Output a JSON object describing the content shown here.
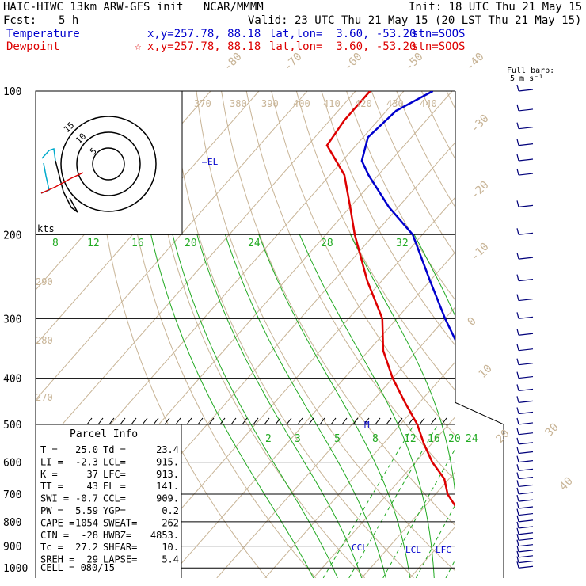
{
  "header": {
    "title": "HAIC-HIWC 13km ARW-GFS init   NCAR/MMMM",
    "init": "Init: 18 UTC Thu 21 May 15",
    "fcst_label": "Fcst:",
    "fcst_value": "5 h",
    "valid": "Valid: 23 UTC Thu 21 May 15 (20 LST Thu 21 May 15)",
    "temperature_line": {
      "label": "Temperature",
      "coords": "x,y=257.78, 88.18",
      "latlon": "lat,lon=  3.60, -53.20",
      "stn": "stn=SOOS",
      "color": "#0000cc"
    },
    "dewpoint_line": {
      "label": "Dewpoint",
      "marker": "☆",
      "coords": "x,y=257.78, 88.18",
      "latlon": "lat,lon=  3.60, -53.20",
      "stn": "stn=SOOS",
      "color": "#dd0000"
    }
  },
  "barb_label": {
    "line1": "Full barb:",
    "line2": "5 m s⁻¹"
  },
  "hodograph": {
    "unit": "kts",
    "ring_labels": [
      "5",
      "10",
      "15"
    ]
  },
  "parcel_info": {
    "title": "Parcel Info",
    "rows": [
      {
        "k1": "T  ",
        "v1": "25.0",
        "k2": "Td ",
        "v2": "23.4"
      },
      {
        "k1": "LI ",
        "v1": "-2.3",
        "k2": "LCL",
        "v2": "915."
      },
      {
        "k1": "K  ",
        "v1": "37",
        "k2": "LFC",
        "v2": "913."
      },
      {
        "k1": "TT ",
        "v1": "43",
        "k2": "EL ",
        "v2": "141."
      },
      {
        "k1": "SWI",
        "v1": "-0.7",
        "k2": "CCL",
        "v2": "909."
      },
      {
        "k1": "PW ",
        "v1": "5.59",
        "k2": "YGP",
        "v2": "0.2"
      },
      {
        "k1": "CAPE",
        "v1": "1054",
        "k2": "SWEAT",
        "v2": "262"
      },
      {
        "k1": "CIN",
        "v1": "-28",
        "k2": "HWBZ",
        "v2": "4853."
      },
      {
        "k1": "Tc ",
        "v1": "27.2",
        "k2": "SHEAR",
        "v2": "10."
      },
      {
        "k1": "SREH",
        "v1": "29",
        "k2": "LAPSE",
        "v2": "5.4"
      }
    ],
    "cell": "CELL = 080/15"
  },
  "chart_data": {
    "type": "line",
    "title": "",
    "y_axis": {
      "label": "",
      "scale": "log",
      "ticks": [
        100,
        200,
        300,
        400,
        500,
        600,
        700,
        800,
        900,
        1000
      ]
    },
    "isotherm_labels": [
      "-80",
      "-70",
      "-60",
      "-50",
      "-40",
      "-30",
      "-20",
      "-10",
      "0",
      "10",
      "20",
      "30",
      "40"
    ],
    "theta_labels": [
      "370",
      "380",
      "390",
      "400",
      "410",
      "420",
      "430",
      "440",
      "290",
      "280",
      "270"
    ],
    "mixing_ratio_labels_upper": [
      "8",
      "12",
      "16",
      "20",
      "24",
      "28",
      "32"
    ],
    "mixing_ratio_labels_lower": [
      "2",
      "3",
      "5",
      "8",
      "12",
      "16",
      "20",
      "24"
    ],
    "level_labels": [
      "EL",
      "M",
      "CCL",
      "LCL",
      "LFC"
    ],
    "series": [
      {
        "name": "Temperature",
        "color": "#0000cc",
        "points": [
          [
            1000,
            25.0
          ],
          [
            970,
            24.0
          ],
          [
            950,
            21.8
          ],
          [
            925,
            20.0
          ],
          [
            900,
            19.5
          ],
          [
            850,
            17.3
          ],
          [
            800,
            15.5
          ],
          [
            750,
            12.8
          ],
          [
            700,
            9.5
          ],
          [
            650,
            7.0
          ],
          [
            600,
            4.5
          ],
          [
            550,
            1.5
          ],
          [
            500,
            -2.5
          ],
          [
            450,
            -7.5
          ],
          [
            400,
            -13
          ],
          [
            350,
            -21
          ],
          [
            300,
            -30
          ],
          [
            250,
            -40
          ],
          [
            200,
            -52
          ],
          [
            175,
            -62
          ],
          [
            150,
            -72
          ],
          [
            140,
            -76
          ],
          [
            125,
            -79
          ],
          [
            110,
            -78
          ],
          [
            100,
            -74
          ]
        ]
      },
      {
        "name": "Dewpoint",
        "color": "#dd0000",
        "points": [
          [
            1000,
            23.4
          ],
          [
            975,
            22.5
          ],
          [
            950,
            20.8
          ],
          [
            925,
            19.4
          ],
          [
            900,
            17.8
          ],
          [
            850,
            14.0
          ],
          [
            800,
            11.0
          ],
          [
            750,
            7.0
          ],
          [
            700,
            2.5
          ],
          [
            650,
            -1.0
          ],
          [
            600,
            -6.5
          ],
          [
            550,
            -11.5
          ],
          [
            500,
            -16.5
          ],
          [
            450,
            -23
          ],
          [
            400,
            -30
          ],
          [
            350,
            -37
          ],
          [
            300,
            -43
          ],
          [
            250,
            -53
          ],
          [
            200,
            -64
          ],
          [
            175,
            -70
          ],
          [
            150,
            -77
          ],
          [
            130,
            -86
          ],
          [
            115,
            -87
          ],
          [
            100,
            -87
          ]
        ]
      }
    ],
    "wind_barbs": {
      "description": "wind barbs along right side",
      "pressures": [
        1000,
        975,
        950,
        925,
        900,
        875,
        850,
        825,
        800,
        775,
        750,
        725,
        700,
        675,
        650,
        625,
        600,
        575,
        550,
        525,
        500,
        475,
        450,
        425,
        400,
        375,
        350,
        325,
        300,
        275,
        250,
        225,
        200,
        175,
        150,
        140,
        130,
        120,
        110,
        100
      ]
    }
  }
}
